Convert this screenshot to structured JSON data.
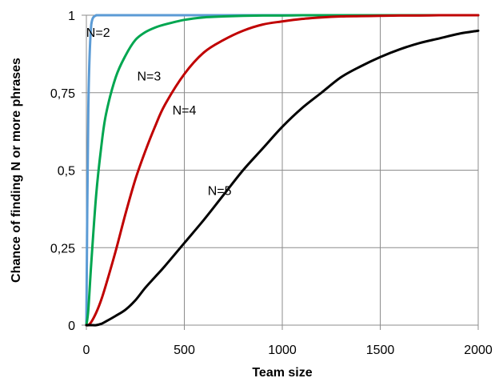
{
  "chart_data": {
    "type": "line",
    "title": "",
    "xlabel": "Team size",
    "ylabel": "Chance of finding N or more phrases",
    "xlim": [
      0,
      2000
    ],
    "ylim": [
      0,
      1
    ],
    "x_ticks": [
      0,
      500,
      1000,
      1500,
      2000
    ],
    "x_tick_labels": [
      "0",
      "500",
      "1000",
      "1500",
      "2000"
    ],
    "y_ticks": [
      0,
      0.25,
      0.5,
      0.75,
      1
    ],
    "y_tick_labels": [
      "0",
      "0,25",
      "0,5",
      "0,75",
      "1"
    ],
    "grid": true,
    "legend": "none",
    "x": [
      0,
      10,
      25,
      50,
      75,
      100,
      150,
      200,
      250,
      300,
      350,
      400,
      500,
      600,
      700,
      800,
      900,
      1000,
      1100,
      1200,
      1300,
      1400,
      1500,
      1600,
      1700,
      1800,
      1900,
      2000
    ],
    "series": [
      {
        "name": "N=2",
        "color": "#5b9bd5",
        "values": [
          0,
          0.7,
          0.97,
          1,
          1,
          1,
          1,
          1,
          1,
          1,
          1,
          1,
          1,
          1,
          1,
          1,
          1,
          1,
          1,
          1,
          1,
          1,
          1,
          1,
          1,
          1,
          1,
          1
        ]
      },
      {
        "name": "N=3",
        "color": "#00a650",
        "values": [
          0,
          0.05,
          0.2,
          0.42,
          0.57,
          0.68,
          0.8,
          0.87,
          0.92,
          0.945,
          0.96,
          0.97,
          0.985,
          0.993,
          0.996,
          0.998,
          0.999,
          0.999,
          1,
          1,
          1,
          1,
          1,
          1,
          1,
          1,
          1,
          1
        ]
      },
      {
        "name": "N=4",
        "color": "#c00000",
        "values": [
          0,
          0,
          0.01,
          0.04,
          0.08,
          0.13,
          0.24,
          0.36,
          0.47,
          0.56,
          0.64,
          0.71,
          0.81,
          0.88,
          0.92,
          0.95,
          0.97,
          0.98,
          0.988,
          0.993,
          0.996,
          0.997,
          0.998,
          0.999,
          0.999,
          1,
          1,
          1
        ]
      },
      {
        "name": "N=5",
        "color": "#000000",
        "values": [
          0,
          0,
          0,
          0,
          0.004,
          0.012,
          0.03,
          0.05,
          0.08,
          0.12,
          0.155,
          0.19,
          0.265,
          0.34,
          0.42,
          0.5,
          0.57,
          0.64,
          0.7,
          0.75,
          0.8,
          0.835,
          0.865,
          0.89,
          0.91,
          0.925,
          0.94,
          0.95
        ]
      }
    ],
    "annotations": [
      {
        "text": "N=2",
        "x": 60,
        "y": 0.93
      },
      {
        "text": "N=3",
        "x": 320,
        "y": 0.79
      },
      {
        "text": "N=4",
        "x": 500,
        "y": 0.68
      },
      {
        "text": "N=5",
        "x": 680,
        "y": 0.42
      }
    ]
  }
}
